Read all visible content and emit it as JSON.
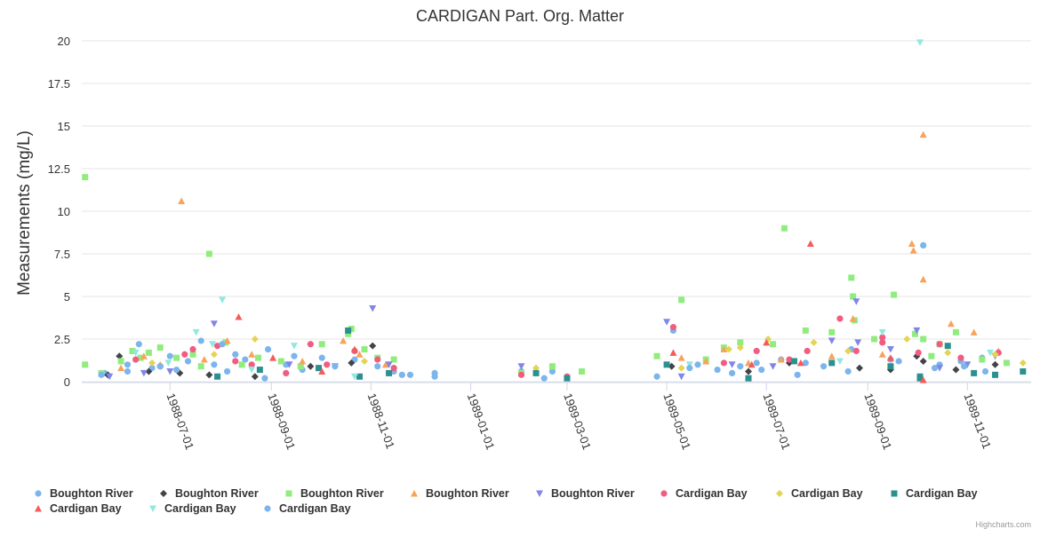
{
  "chart_data": {
    "type": "scatter",
    "title": "CARDIGAN Part. Org. Matter",
    "ylabel": "Measurements (mg/L)",
    "xlabel": "",
    "ylim": [
      0,
      20
    ],
    "yticks": [
      "0",
      "2.5",
      "5",
      "7.5",
      "10",
      "12.5",
      "15",
      "17.5",
      "20"
    ],
    "xrange": [
      "1988-05-08",
      "1989-12-10"
    ],
    "xticks": [
      "1988-07-01",
      "1988-09-01",
      "1988-11-01",
      "1989-01-01",
      "1989-03-01",
      "1989-05-01",
      "1989-07-01",
      "1989-09-01",
      "1989-11-01"
    ],
    "credits": "Highcharts.com",
    "series": [
      {
        "name": "Boughton River",
        "symbol": "circle",
        "color": "#7cb5ec",
        "points": [
          [
            "1988-05-22",
            0.5
          ],
          [
            "1988-06-05",
            1.0
          ],
          [
            "1988-06-12",
            2.2
          ],
          [
            "1988-06-20",
            0.8
          ],
          [
            "1988-07-01",
            1.5
          ],
          [
            "1988-07-12",
            1.2
          ],
          [
            "1988-07-20",
            2.4
          ],
          [
            "1988-07-28",
            1.0
          ],
          [
            "1988-08-05",
            0.6
          ],
          [
            "1988-08-16",
            1.3
          ],
          [
            "1988-08-30",
            1.9
          ],
          [
            "1988-09-10",
            1.0
          ],
          [
            "1988-09-20",
            0.7
          ],
          [
            "1988-10-02",
            1.4
          ],
          [
            "1988-10-22",
            1.3
          ],
          [
            "1988-11-05",
            0.9
          ],
          [
            "1988-11-15",
            0.6
          ],
          [
            "1988-11-25",
            0.4
          ],
          [
            "1988-12-10",
            0.5
          ],
          [
            "1989-02-01",
            0.6
          ],
          [
            "1989-02-20",
            0.6
          ],
          [
            "1989-04-25",
            0.3
          ],
          [
            "1989-05-05",
            3.0
          ],
          [
            "1989-05-20",
            1.0
          ],
          [
            "1989-06-01",
            0.7
          ],
          [
            "1989-06-15",
            0.9
          ],
          [
            "1989-06-25",
            1.1
          ],
          [
            "1989-07-10",
            1.3
          ],
          [
            "1989-07-25",
            1.1
          ],
          [
            "1989-08-05",
            0.9
          ],
          [
            "1989-08-22",
            1.9
          ],
          [
            "1989-09-15",
            1.3
          ],
          [
            "1989-10-05",
            8.0
          ],
          [
            "1989-10-15",
            1.0
          ],
          [
            "1989-10-28",
            1.2
          ],
          [
            "1989-11-10",
            1.4
          ]
        ]
      },
      {
        "name": "Boughton River",
        "symbol": "diamond",
        "color": "#434348",
        "points": [
          [
            "1988-05-24",
            0.4
          ],
          [
            "1988-05-31",
            1.5
          ],
          [
            "1988-06-18",
            0.6
          ],
          [
            "1988-07-07",
            0.5
          ],
          [
            "1988-07-25",
            0.4
          ],
          [
            "1988-08-22",
            0.3
          ],
          [
            "1988-09-25",
            0.9
          ],
          [
            "1988-10-20",
            1.1
          ],
          [
            "1988-11-02",
            2.1
          ],
          [
            "1989-05-04",
            0.9
          ],
          [
            "1989-06-20",
            0.6
          ],
          [
            "1989-07-15",
            1.1
          ],
          [
            "1989-08-27",
            0.8
          ],
          [
            "1989-09-15",
            0.7
          ],
          [
            "1989-10-01",
            1.5
          ],
          [
            "1989-10-05",
            1.2
          ],
          [
            "1989-10-25",
            0.7
          ],
          [
            "1989-11-18",
            1.0
          ]
        ]
      },
      {
        "name": "Boughton River",
        "symbol": "square",
        "color": "#90ed7d",
        "points": [
          [
            "1988-05-10",
            12.0
          ],
          [
            "1988-05-10",
            1.0
          ],
          [
            "1988-05-20",
            0.5
          ],
          [
            "1988-06-01",
            1.2
          ],
          [
            "1988-06-08",
            1.8
          ],
          [
            "1988-06-13",
            1.4
          ],
          [
            "1988-06-18",
            1.7
          ],
          [
            "1988-06-25",
            2.0
          ],
          [
            "1988-07-05",
            1.4
          ],
          [
            "1988-07-15",
            1.6
          ],
          [
            "1988-07-20",
            0.9
          ],
          [
            "1988-07-25",
            7.5
          ],
          [
            "1988-08-04",
            2.3
          ],
          [
            "1988-08-14",
            1.0
          ],
          [
            "1988-08-24",
            1.4
          ],
          [
            "1988-09-07",
            1.2
          ],
          [
            "1988-09-19",
            0.9
          ],
          [
            "1988-10-02",
            2.2
          ],
          [
            "1988-10-18",
            2.8
          ],
          [
            "1988-10-20",
            3.1
          ],
          [
            "1988-10-28",
            1.9
          ],
          [
            "1988-11-05",
            1.4
          ],
          [
            "1988-11-15",
            1.3
          ],
          [
            "1989-02-01",
            0.5
          ],
          [
            "1989-02-20",
            0.9
          ],
          [
            "1989-03-10",
            0.6
          ],
          [
            "1989-04-25",
            1.5
          ],
          [
            "1989-05-10",
            4.8
          ],
          [
            "1989-05-25",
            1.3
          ],
          [
            "1989-06-05",
            2.0
          ],
          [
            "1989-06-15",
            2.3
          ],
          [
            "1989-07-05",
            2.2
          ],
          [
            "1989-07-12",
            9.0
          ],
          [
            "1989-07-25",
            3.0
          ],
          [
            "1989-08-10",
            2.9
          ],
          [
            "1989-08-22",
            6.1
          ],
          [
            "1989-08-23",
            5.0
          ],
          [
            "1989-08-24",
            3.6
          ],
          [
            "1989-09-05",
            2.5
          ],
          [
            "1989-09-17",
            5.1
          ],
          [
            "1989-09-30",
            2.8
          ],
          [
            "1989-10-05",
            2.5
          ],
          [
            "1989-10-10",
            1.5
          ],
          [
            "1989-10-15",
            2.2
          ],
          [
            "1989-10-25",
            2.9
          ],
          [
            "1989-11-10",
            1.3
          ],
          [
            "1989-11-25",
            1.1
          ]
        ]
      },
      {
        "name": "Boughton River",
        "symbol": "triangle",
        "color": "#f7a35c",
        "points": [
          [
            "1988-06-01",
            0.8
          ],
          [
            "1988-06-15",
            1.5
          ],
          [
            "1988-06-25",
            1.0
          ],
          [
            "1988-07-08",
            10.6
          ],
          [
            "1988-07-22",
            1.3
          ],
          [
            "1988-08-05",
            2.4
          ],
          [
            "1988-08-20",
            1.6
          ],
          [
            "1988-09-20",
            1.2
          ],
          [
            "1988-10-15",
            2.4
          ],
          [
            "1988-10-25",
            1.6
          ],
          [
            "1988-11-10",
            1.0
          ],
          [
            "1989-05-10",
            1.4
          ],
          [
            "1989-05-25",
            1.2
          ],
          [
            "1989-06-05",
            1.9
          ],
          [
            "1989-06-20",
            1.1
          ],
          [
            "1989-07-10",
            1.3
          ],
          [
            "1989-08-10",
            1.5
          ],
          [
            "1989-08-23",
            3.7
          ],
          [
            "1989-09-10",
            1.6
          ],
          [
            "1989-09-28",
            8.1
          ],
          [
            "1989-09-29",
            7.7
          ],
          [
            "1989-10-05",
            14.5
          ],
          [
            "1989-10-05",
            6.0
          ],
          [
            "1989-10-22",
            3.4
          ],
          [
            "1989-11-05",
            2.9
          ],
          [
            "1989-11-20",
            1.8
          ]
        ]
      },
      {
        "name": "Boughton River",
        "symbol": "triangle-down",
        "color": "#8085e9",
        "points": [
          [
            "1988-05-25",
            0.3
          ],
          [
            "1988-06-15",
            0.5
          ],
          [
            "1988-07-01",
            0.6
          ],
          [
            "1988-07-28",
            3.4
          ],
          [
            "1988-09-12",
            1.0
          ],
          [
            "1988-10-10",
            0.9
          ],
          [
            "1988-11-02",
            4.3
          ],
          [
            "1988-11-12",
            1.0
          ],
          [
            "1989-02-01",
            0.9
          ],
          [
            "1989-05-01",
            3.5
          ],
          [
            "1989-05-10",
            0.3
          ],
          [
            "1989-06-10",
            1.0
          ],
          [
            "1989-07-05",
            0.9
          ],
          [
            "1989-08-10",
            2.4
          ],
          [
            "1989-08-25",
            4.7
          ],
          [
            "1989-08-26",
            2.3
          ],
          [
            "1989-09-15",
            1.9
          ],
          [
            "1989-10-01",
            3.0
          ],
          [
            "1989-10-15",
            0.8
          ],
          [
            "1989-11-01",
            1.0
          ],
          [
            "1989-11-18",
            1.5
          ]
        ]
      },
      {
        "name": "Cardigan Bay",
        "symbol": "circle",
        "color": "#f15c80",
        "points": [
          [
            "1988-06-10",
            1.3
          ],
          [
            "1988-06-25",
            0.9
          ],
          [
            "1988-07-10",
            1.6
          ],
          [
            "1988-07-15",
            1.9
          ],
          [
            "1988-07-30",
            2.1
          ],
          [
            "1988-08-10",
            1.2
          ],
          [
            "1988-08-20",
            1.0
          ],
          [
            "1988-09-10",
            0.5
          ],
          [
            "1988-09-25",
            2.2
          ],
          [
            "1988-10-05",
            1.0
          ],
          [
            "1988-10-22",
            1.8
          ],
          [
            "1988-11-05",
            1.3
          ],
          [
            "1988-11-15",
            0.8
          ],
          [
            "1989-02-01",
            0.4
          ],
          [
            "1989-03-01",
            0.3
          ],
          [
            "1989-05-05",
            3.2
          ],
          [
            "1989-06-05",
            1.1
          ],
          [
            "1989-06-25",
            1.8
          ],
          [
            "1989-07-15",
            1.3
          ],
          [
            "1989-07-26",
            1.8
          ],
          [
            "1989-08-15",
            3.7
          ],
          [
            "1989-08-25",
            1.8
          ],
          [
            "1989-09-10",
            2.6
          ],
          [
            "1989-09-10",
            2.3
          ],
          [
            "1989-10-02",
            1.7
          ],
          [
            "1989-10-15",
            2.2
          ],
          [
            "1989-10-28",
            1.4
          ],
          [
            "1989-11-20",
            1.7
          ]
        ]
      },
      {
        "name": "Cardigan Bay",
        "symbol": "diamond",
        "color": "#e4d354",
        "points": [
          [
            "1988-06-20",
            1.1
          ],
          [
            "1988-07-28",
            1.6
          ],
          [
            "1988-08-22",
            2.5
          ],
          [
            "1988-09-30",
            0.8
          ],
          [
            "1988-10-28",
            1.2
          ],
          [
            "1989-02-10",
            0.8
          ],
          [
            "1989-05-10",
            0.8
          ],
          [
            "1989-06-08",
            1.9
          ],
          [
            "1989-06-15",
            2.0
          ],
          [
            "1989-07-02",
            2.5
          ],
          [
            "1989-07-30",
            2.3
          ],
          [
            "1989-08-20",
            1.8
          ],
          [
            "1989-09-25",
            2.5
          ],
          [
            "1989-10-20",
            1.7
          ],
          [
            "1989-11-18",
            1.6
          ],
          [
            "1989-12-05",
            1.1
          ]
        ]
      },
      {
        "name": "Cardigan Bay",
        "symbol": "square",
        "color": "#2b908f",
        "points": [
          [
            "1988-07-30",
            0.3
          ],
          [
            "1988-08-25",
            0.7
          ],
          [
            "1988-09-30",
            0.8
          ],
          [
            "1988-10-18",
            3.0
          ],
          [
            "1988-10-25",
            0.3
          ],
          [
            "1988-11-12",
            0.5
          ],
          [
            "1989-02-10",
            0.5
          ],
          [
            "1989-03-01",
            0.2
          ],
          [
            "1989-05-01",
            1.0
          ],
          [
            "1989-06-20",
            0.2
          ],
          [
            "1989-07-18",
            1.2
          ],
          [
            "1989-08-10",
            1.1
          ],
          [
            "1989-09-15",
            0.9
          ],
          [
            "1989-10-03",
            0.2
          ],
          [
            "1989-10-03",
            0.3
          ],
          [
            "1989-10-20",
            2.1
          ],
          [
            "1989-11-05",
            0.5
          ],
          [
            "1989-11-18",
            0.4
          ],
          [
            "1989-12-05",
            0.6
          ]
        ]
      },
      {
        "name": "Cardigan Bay",
        "symbol": "triangle",
        "color": "#f45b5b",
        "points": [
          [
            "1988-08-12",
            3.8
          ],
          [
            "1988-09-02",
            1.4
          ],
          [
            "1988-10-02",
            0.6
          ],
          [
            "1988-10-22",
            1.9
          ],
          [
            "1989-05-05",
            1.7
          ],
          [
            "1989-06-22",
            1.0
          ],
          [
            "1989-07-01",
            2.3
          ],
          [
            "1989-07-22",
            1.1
          ],
          [
            "1989-07-28",
            8.1
          ],
          [
            "1989-09-15",
            1.4
          ],
          [
            "1989-10-05",
            0.1
          ]
        ]
      },
      {
        "name": "Cardigan Bay",
        "symbol": "triangle-down",
        "color": "#91e8e1",
        "points": [
          [
            "1988-06-10",
            1.7
          ],
          [
            "1988-06-30",
            1.1
          ],
          [
            "1988-07-17",
            2.9
          ],
          [
            "1988-07-27",
            2.2
          ],
          [
            "1988-08-02",
            4.8
          ],
          [
            "1988-08-20",
            0.7
          ],
          [
            "1988-09-15",
            2.1
          ],
          [
            "1988-10-22",
            0.3
          ],
          [
            "1989-05-15",
            1.0
          ],
          [
            "1989-08-15",
            1.2
          ],
          [
            "1989-09-10",
            2.9
          ],
          [
            "1989-10-03",
            19.9
          ],
          [
            "1989-11-15",
            1.7
          ]
        ]
      },
      {
        "name": "Cardigan Bay",
        "symbol": "circle",
        "color": "#7cb5ec",
        "points": [
          [
            "1988-05-20",
            0.4
          ],
          [
            "1988-06-05",
            0.6
          ],
          [
            "1988-06-25",
            0.9
          ],
          [
            "1988-07-05",
            0.7
          ],
          [
            "1988-08-02",
            2.2
          ],
          [
            "1988-08-10",
            1.6
          ],
          [
            "1988-08-28",
            0.2
          ],
          [
            "1988-09-15",
            1.5
          ],
          [
            "1988-10-10",
            0.9
          ],
          [
            "1988-11-20",
            0.4
          ],
          [
            "1988-12-10",
            0.3
          ],
          [
            "1989-02-15",
            0.2
          ],
          [
            "1989-05-15",
            0.8
          ],
          [
            "1989-06-10",
            0.5
          ],
          [
            "1989-06-28",
            0.7
          ],
          [
            "1989-07-20",
            0.4
          ],
          [
            "1989-08-20",
            0.6
          ],
          [
            "1989-09-20",
            1.2
          ],
          [
            "1989-10-12",
            0.8
          ],
          [
            "1989-10-30",
            0.9
          ],
          [
            "1989-11-12",
            0.6
          ]
        ]
      }
    ]
  }
}
